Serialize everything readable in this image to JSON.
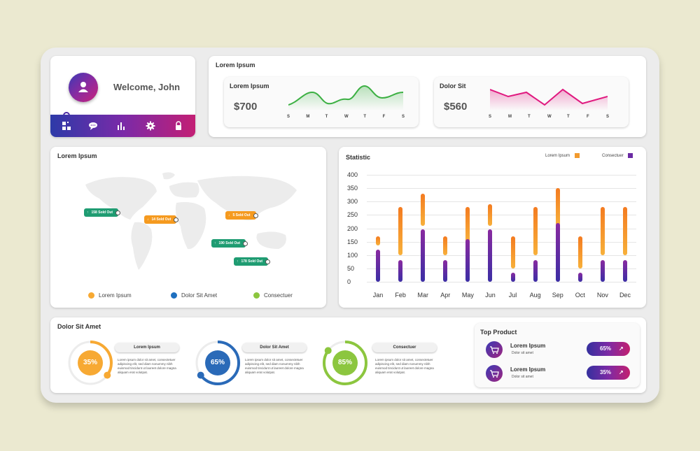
{
  "profile": {
    "greeting": "Welcome, John",
    "nav_icons": [
      "dashboard-icon",
      "chat-icon",
      "chart-icon",
      "gear-icon",
      "lock-icon"
    ]
  },
  "top_panel": {
    "title": "Lorem Ipsum",
    "cards": [
      {
        "label": "Lorem Ipsum",
        "value": "$700",
        "color": "#3cb043",
        "days": [
          "S",
          "M",
          "T",
          "W",
          "T",
          "F",
          "S"
        ]
      },
      {
        "label": "Dolor Sit",
        "value": "$560",
        "color": "#e0197f",
        "days": [
          "S",
          "M",
          "T",
          "W",
          "T",
          "F",
          "S"
        ]
      }
    ]
  },
  "map_panel": {
    "title": "Lorem Ipsum",
    "tags": [
      {
        "text": "158 Sold Out",
        "arrow": "up",
        "color": "#1f9c72"
      },
      {
        "text": "14 Sold Out",
        "arrow": "down",
        "color": "#f59a1f"
      },
      {
        "text": "5 Sold Out",
        "arrow": "down",
        "color": "#f59a1f"
      },
      {
        "text": "190 Sold Out",
        "arrow": "up",
        "color": "#1f9c72"
      },
      {
        "text": "178 Sold Out",
        "arrow": "up",
        "color": "#1f9c72"
      }
    ],
    "legend": [
      {
        "label": "Lorem Ipsum",
        "color": "#f7a933"
      },
      {
        "label": "Dolor Sit Amet",
        "color": "#1e6fbf"
      },
      {
        "label": "Consectuer",
        "color": "#8cc63f"
      }
    ]
  },
  "chart_data": {
    "type": "bar",
    "title": "Statistic",
    "categories": [
      "Jan",
      "Feb",
      "Mar",
      "Apr",
      "May",
      "Jun",
      "Jul",
      "Aug",
      "Sep",
      "Oct",
      "Nov",
      "Dec"
    ],
    "ylim": [
      0,
      400
    ],
    "yticks": [
      0,
      50,
      100,
      150,
      200,
      250,
      300,
      350,
      400
    ],
    "series": [
      {
        "name": "Lorem Ipsum",
        "color": "#f29a2e",
        "low": [
          135,
          100,
          210,
          100,
          150,
          210,
          50,
          100,
          210,
          50,
          100,
          100
        ],
        "high": [
          170,
          280,
          330,
          170,
          280,
          290,
          170,
          280,
          350,
          170,
          280,
          280
        ]
      },
      {
        "name": "Consectuer",
        "color": "#6a2aa3",
        "values": [
          120,
          80,
          195,
          80,
          160,
          195,
          35,
          80,
          220,
          35,
          80,
          80
        ]
      }
    ],
    "legend_position": "top-right",
    "grid": true
  },
  "progress_panel": {
    "title": "Dolor Sit Amet",
    "items": [
      {
        "percent": "35%",
        "value": 35,
        "label": "Lorem Ipsum",
        "color": "#f7a933",
        "text": "Lorem ipsum dolor sit amet, consectetuer adipiscing elit, sed diam nonummy nibh euismod tincidunt ut laoreet dolore magna aliquam erat volutpat."
      },
      {
        "percent": "65%",
        "value": 65,
        "label": "Dolor Sit Amet",
        "color": "#2a6ab8",
        "text": "Lorem ipsum dolor sit amet, consectetuer adipiscing elit, sed diam nonummy nibh euismod tincidunt ut laoreet dolore magna aliquam erat volutpat."
      },
      {
        "percent": "85%",
        "value": 85,
        "label": "Consectuer",
        "color": "#8cc63f",
        "text": "Lorem ipsum dolor sit amet, consectetuer adipiscing elit, sed diam nonummy nibh euismod tincidunt ut laoreet dolore magna aliquam erat volutpat."
      }
    ]
  },
  "top_product": {
    "title": "Top Product",
    "items": [
      {
        "name": "Lorem Ipsum",
        "sub": "Dolor sit amet",
        "percent": "65%"
      },
      {
        "name": "Lorem Ipsum",
        "sub": "Dolor sit amet",
        "percent": "35%"
      }
    ]
  }
}
